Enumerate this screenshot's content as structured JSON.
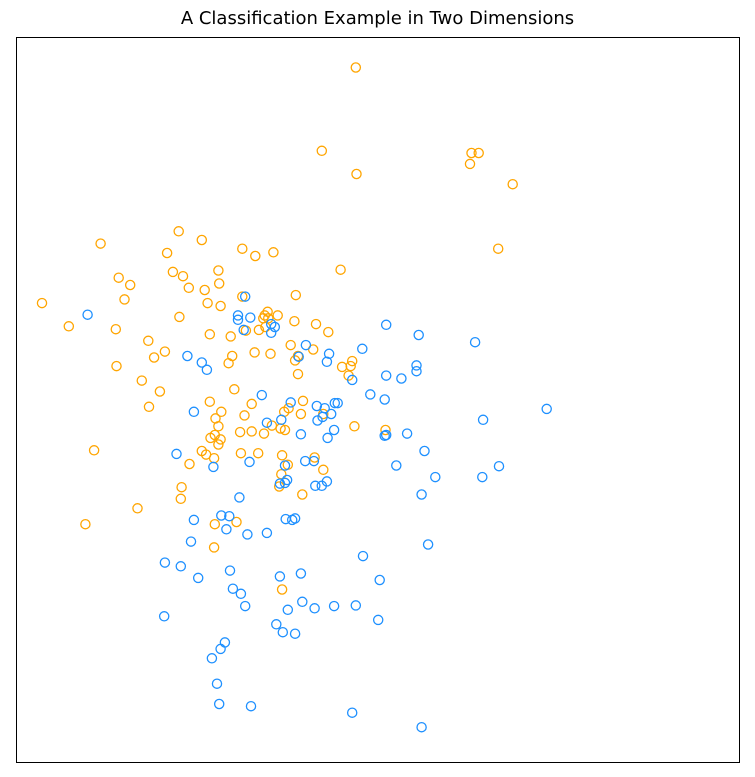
{
  "chart_data": {
    "type": "scatter",
    "title": "A Classification Example in Two Dimensions",
    "xlabel": "",
    "ylabel": "",
    "xlim": [
      0,
      100
    ],
    "ylim": [
      0,
      100
    ],
    "axes_ticks": false,
    "grid": false,
    "marker": "hollow-circle",
    "series": [
      {
        "color": "#FFA500",
        "points": [
          [
            47.0,
            95.8
          ],
          [
            42.3,
            84.3
          ],
          [
            47.1,
            81.1
          ],
          [
            63.0,
            84.0
          ],
          [
            64.0,
            84.0
          ],
          [
            62.8,
            82.5
          ],
          [
            68.7,
            79.7
          ],
          [
            3.6,
            63.3
          ],
          [
            7.3,
            60.1
          ],
          [
            11.7,
            71.5
          ],
          [
            14.2,
            66.8
          ],
          [
            15.0,
            63.8
          ],
          [
            13.8,
            59.7
          ],
          [
            15.8,
            65.8
          ],
          [
            18.3,
            58.1
          ],
          [
            19.1,
            55.8
          ],
          [
            20.6,
            56.6
          ],
          [
            13.9,
            54.6
          ],
          [
            17.4,
            52.6
          ],
          [
            19.9,
            51.1
          ],
          [
            18.4,
            49.0
          ],
          [
            10.8,
            43.0
          ],
          [
            9.6,
            32.8
          ],
          [
            16.8,
            35.0
          ],
          [
            22.8,
            36.3
          ],
          [
            20.9,
            70.2
          ],
          [
            21.7,
            67.6
          ],
          [
            23.1,
            67.0
          ],
          [
            22.5,
            73.2
          ],
          [
            22.6,
            61.4
          ],
          [
            23.9,
            65.4
          ],
          [
            25.7,
            72.0
          ],
          [
            26.1,
            65.1
          ],
          [
            26.5,
            63.3
          ],
          [
            28.0,
            67.8
          ],
          [
            28.1,
            66.0
          ],
          [
            28.3,
            62.9
          ],
          [
            26.8,
            59.0
          ],
          [
            29.7,
            58.7
          ],
          [
            29.9,
            56.0
          ],
          [
            29.4,
            55.0
          ],
          [
            31.3,
            70.8
          ],
          [
            31.3,
            64.2
          ],
          [
            33.1,
            69.8
          ],
          [
            35.6,
            70.3
          ],
          [
            34.2,
            61.2
          ],
          [
            33.6,
            59.6
          ],
          [
            34.8,
            62.1
          ],
          [
            31.8,
            59.5
          ],
          [
            33.0,
            56.5
          ],
          [
            35.2,
            56.3
          ],
          [
            34.4,
            61.6
          ],
          [
            38.7,
            64.4
          ],
          [
            38.5,
            60.8
          ],
          [
            38.0,
            57.5
          ],
          [
            38.6,
            55.4
          ],
          [
            41.5,
            60.4
          ],
          [
            43.2,
            59.3
          ],
          [
            44.9,
            67.9
          ],
          [
            26.8,
            49.7
          ],
          [
            28.4,
            48.3
          ],
          [
            30.2,
            51.4
          ],
          [
            27.6,
            47.4
          ],
          [
            28.0,
            46.3
          ],
          [
            27.5,
            45.1
          ],
          [
            26.9,
            44.7
          ],
          [
            28.3,
            44.5
          ],
          [
            31.6,
            47.8
          ],
          [
            32.6,
            49.4
          ],
          [
            35.4,
            46.4
          ],
          [
            36.6,
            46.0
          ],
          [
            37.2,
            45.8
          ],
          [
            39.4,
            48.0
          ],
          [
            31.0,
            45.5
          ],
          [
            32.6,
            45.6
          ],
          [
            34.3,
            45.3
          ],
          [
            26.3,
            42.4
          ],
          [
            25.7,
            42.9
          ],
          [
            31.1,
            42.6
          ],
          [
            33.5,
            42.6
          ],
          [
            27.4,
            41.9
          ],
          [
            28.0,
            43.8
          ],
          [
            24.0,
            41.1
          ],
          [
            36.8,
            42.3
          ],
          [
            37.6,
            41.0
          ],
          [
            36.7,
            39.7
          ],
          [
            36.4,
            38.0
          ],
          [
            41.3,
            42.0
          ],
          [
            42.5,
            40.3
          ],
          [
            45.1,
            54.5
          ],
          [
            46.3,
            54.6
          ],
          [
            46.5,
            55.3
          ],
          [
            46.8,
            46.3
          ],
          [
            51.1,
            45.8
          ],
          [
            22.9,
            37.9
          ],
          [
            27.5,
            32.8
          ],
          [
            27.4,
            29.6
          ],
          [
            30.5,
            33.1
          ],
          [
            39.6,
            36.9
          ],
          [
            36.8,
            23.8
          ],
          [
            34.5,
            60.0
          ],
          [
            34.9,
            61.2
          ],
          [
            36.2,
            61.6
          ],
          [
            41.1,
            56.9
          ],
          [
            46.0,
            53.3
          ],
          [
            66.7,
            70.8
          ],
          [
            39.0,
            53.5
          ],
          [
            39.0,
            56.0
          ],
          [
            37.7,
            48.8
          ],
          [
            37.1,
            48.3
          ],
          [
            39.7,
            49.8
          ],
          [
            42.5,
            48.0
          ]
        ]
      },
      {
        "color": "#1E90FF",
        "points": [
          [
            9.9,
            61.7
          ],
          [
            23.7,
            56.0
          ],
          [
            25.7,
            55.1
          ],
          [
            26.4,
            54.1
          ],
          [
            24.6,
            48.3
          ],
          [
            22.2,
            42.5
          ],
          [
            27.3,
            40.7
          ],
          [
            30.7,
            61.6
          ],
          [
            30.7,
            61.0
          ],
          [
            32.4,
            61.3
          ],
          [
            31.5,
            59.6
          ],
          [
            35.3,
            60.4
          ],
          [
            35.8,
            60.0
          ],
          [
            35.3,
            59.2
          ],
          [
            31.7,
            64.2
          ],
          [
            40.1,
            57.5
          ],
          [
            39.1,
            55.9
          ],
          [
            43.3,
            56.3
          ],
          [
            43.0,
            55.2
          ],
          [
            47.9,
            57.0
          ],
          [
            51.2,
            60.3
          ],
          [
            55.4,
            54.7
          ],
          [
            55.4,
            53.9
          ],
          [
            51.2,
            53.3
          ],
          [
            53.3,
            52.9
          ],
          [
            46.5,
            52.7
          ],
          [
            49.0,
            50.7
          ],
          [
            51.0,
            50.0
          ],
          [
            44.1,
            49.5
          ],
          [
            44.5,
            49.5
          ],
          [
            41.6,
            49.1
          ],
          [
            42.7,
            48.8
          ],
          [
            43.6,
            48.0
          ],
          [
            44.0,
            45.8
          ],
          [
            43.1,
            44.7
          ],
          [
            34.0,
            50.6
          ],
          [
            34.7,
            46.8
          ],
          [
            36.7,
            47.2
          ],
          [
            38.0,
            49.6
          ],
          [
            41.7,
            47.1
          ],
          [
            42.4,
            47.6
          ],
          [
            39.4,
            45.2
          ],
          [
            51.2,
            45.1
          ],
          [
            54.1,
            45.3
          ],
          [
            51.0,
            45.0
          ],
          [
            40.0,
            41.5
          ],
          [
            37.2,
            40.9
          ],
          [
            37.5,
            38.9
          ],
          [
            36.5,
            38.4
          ],
          [
            37.2,
            38.5
          ],
          [
            32.3,
            41.4
          ],
          [
            41.4,
            38.1
          ],
          [
            43.0,
            38.7
          ],
          [
            42.3,
            38.1
          ],
          [
            52.6,
            40.9
          ],
          [
            56.5,
            42.9
          ],
          [
            58.0,
            39.3
          ],
          [
            24.6,
            33.4
          ],
          [
            30.9,
            36.5
          ],
          [
            29.1,
            32.1
          ],
          [
            37.3,
            33.5
          ],
          [
            38.6,
            33.6
          ],
          [
            38.2,
            33.4
          ],
          [
            41.2,
            41.5
          ],
          [
            31.1,
            23.2
          ],
          [
            32.0,
            31.4
          ],
          [
            34.7,
            31.6
          ],
          [
            28.4,
            34.0
          ],
          [
            29.5,
            33.9
          ],
          [
            56.1,
            36.9
          ],
          [
            57.0,
            30.0
          ],
          [
            48.0,
            28.4
          ],
          [
            50.3,
            25.1
          ],
          [
            36.5,
            25.6
          ],
          [
            39.4,
            26.0
          ],
          [
            30.0,
            23.9
          ],
          [
            31.7,
            21.5
          ],
          [
            37.6,
            21.0
          ],
          [
            39.6,
            22.1
          ],
          [
            41.3,
            21.2
          ],
          [
            44.0,
            21.5
          ],
          [
            47.0,
            21.6
          ],
          [
            50.1,
            19.6
          ],
          [
            46.5,
            6.8
          ],
          [
            56.1,
            4.8
          ],
          [
            36.9,
            17.9
          ],
          [
            36.0,
            19.0
          ],
          [
            28.9,
            16.5
          ],
          [
            28.3,
            15.6
          ],
          [
            27.1,
            14.3
          ],
          [
            27.8,
            10.8
          ],
          [
            38.6,
            17.7
          ],
          [
            28.1,
            8.0
          ],
          [
            32.5,
            7.7
          ],
          [
            20.5,
            20.1
          ],
          [
            20.6,
            27.5
          ],
          [
            22.8,
            27.0
          ],
          [
            25.2,
            25.4
          ],
          [
            24.2,
            30.4
          ],
          [
            29.6,
            26.4
          ],
          [
            63.5,
            57.9
          ],
          [
            55.7,
            58.9
          ],
          [
            64.6,
            47.2
          ],
          [
            66.8,
            40.8
          ],
          [
            64.5,
            39.3
          ],
          [
            73.4,
            48.7
          ]
        ]
      }
    ]
  }
}
